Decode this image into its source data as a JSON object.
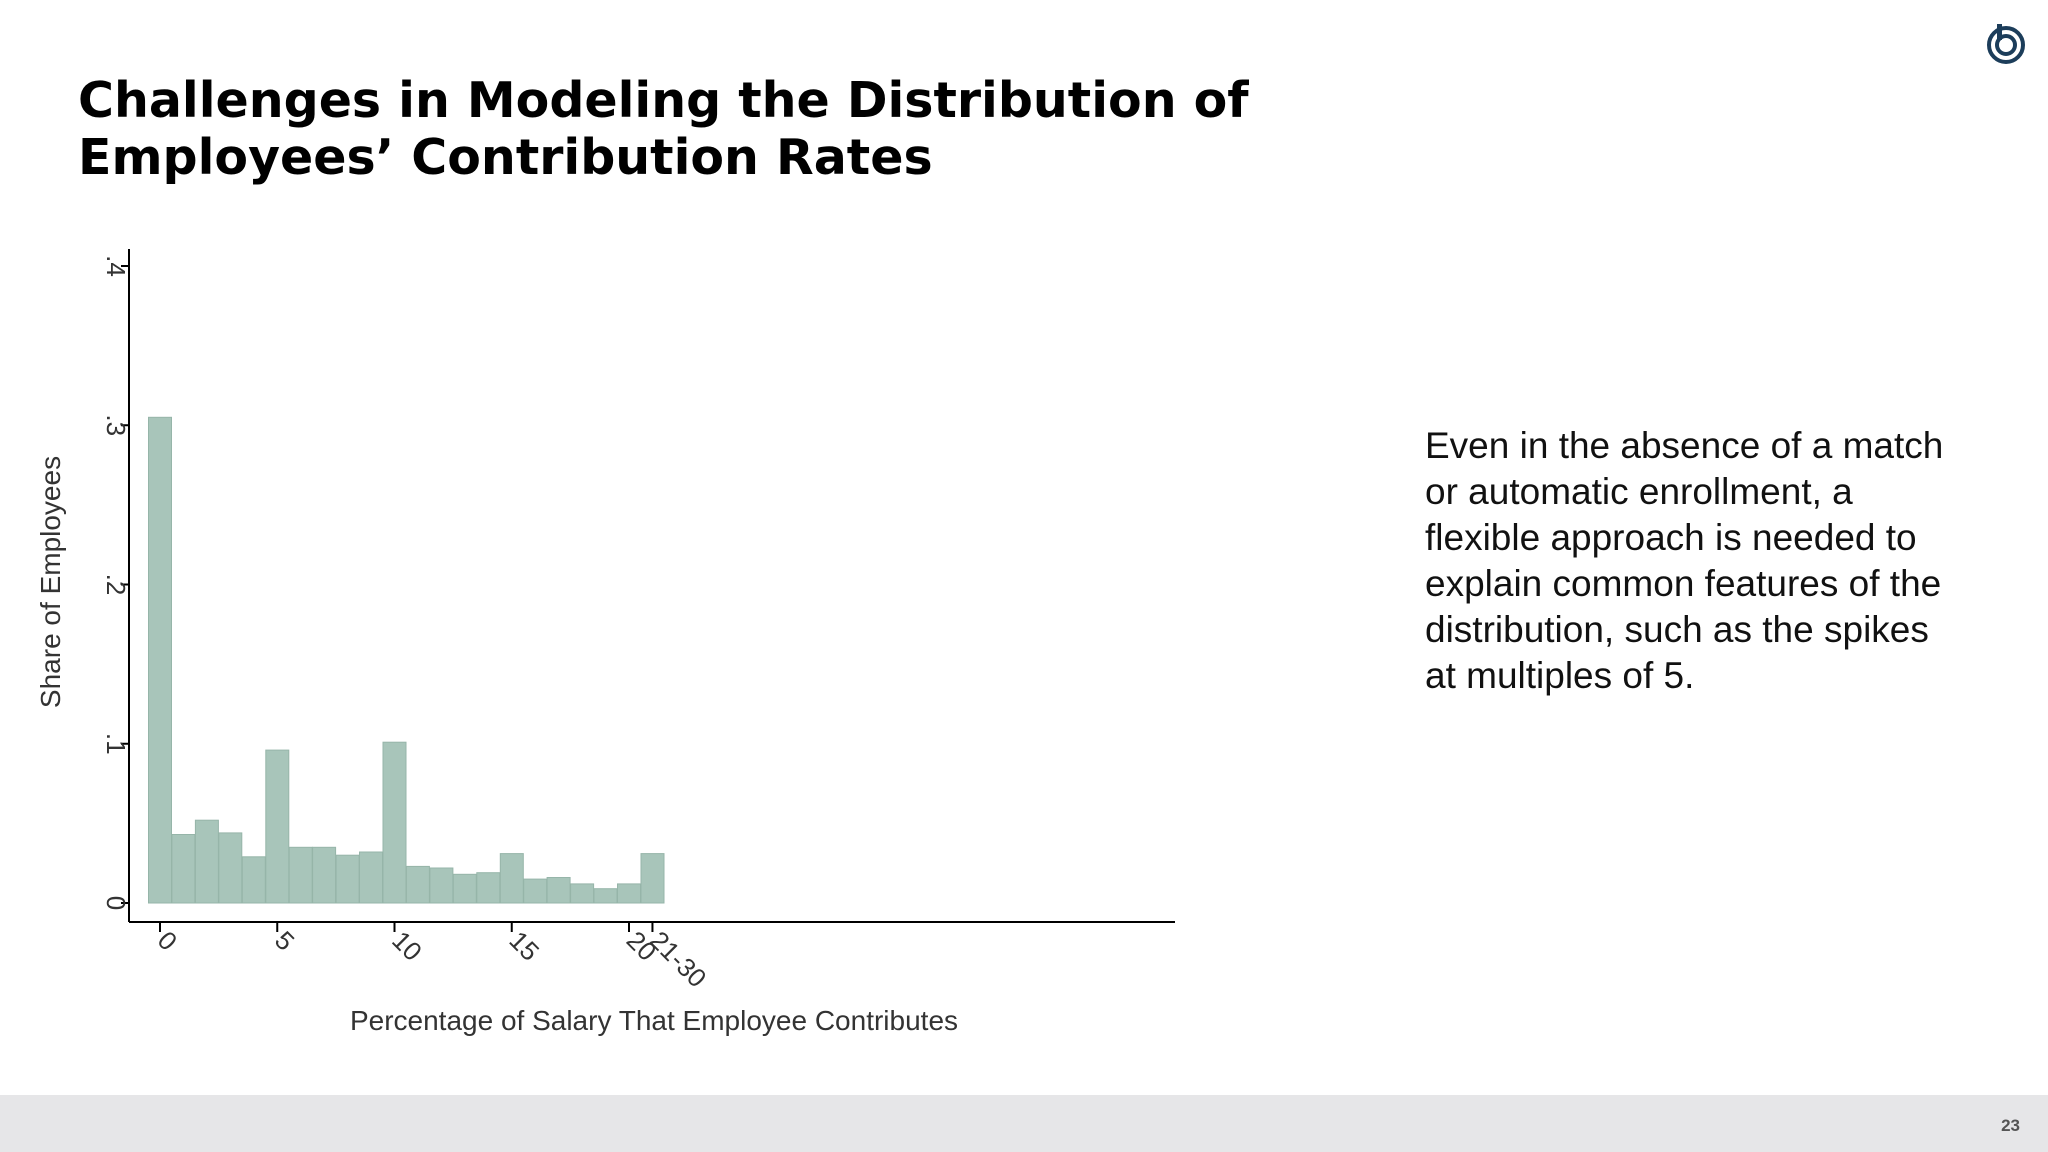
{
  "slide": {
    "title_line1": "Challenges in Modeling the Distribution of",
    "title_line2": "Employees’ Contribution Rates",
    "body_text": "Even in the absence of a match or automatic enrollment, a flexible approach is needed to explain common features of the distribution, such as the spikes at multiples of 5.",
    "page_number": "23",
    "logo_icon": "circle-logo-icon",
    "colors": {
      "bar": "#a8c5ba",
      "logo": "#1c3d5a",
      "footer": "#e6e6e8"
    }
  },
  "chart_data": {
    "type": "bar",
    "title": "",
    "xlabel": "Percentage of Salary That Employee Contributes",
    "ylabel": "Share of Employees",
    "ylim": [
      0,
      0.4
    ],
    "yticks": [
      0,
      0.1,
      0.2,
      0.3,
      0.4
    ],
    "ytick_labels": [
      "0",
      ".1",
      ".2",
      ".3",
      ".4"
    ],
    "categories": [
      "0",
      "1",
      "2",
      "3",
      "4",
      "5",
      "6",
      "7",
      "8",
      "9",
      "10",
      "11",
      "12",
      "13",
      "14",
      "15",
      "16",
      "17",
      "18",
      "19",
      "20",
      "21-30"
    ],
    "xtick_labels": [
      "0",
      "5",
      "10",
      "15",
      "20",
      "21-30"
    ],
    "xtick_categories": [
      "0",
      "5",
      "10",
      "15",
      "20",
      "21-30"
    ],
    "values": [
      0.305,
      0.043,
      0.052,
      0.044,
      0.029,
      0.096,
      0.035,
      0.035,
      0.03,
      0.032,
      0.101,
      0.023,
      0.022,
      0.018,
      0.019,
      0.031,
      0.015,
      0.016,
      0.012,
      0.009,
      0.012,
      0.031
    ],
    "grid": false,
    "legend": "none"
  }
}
